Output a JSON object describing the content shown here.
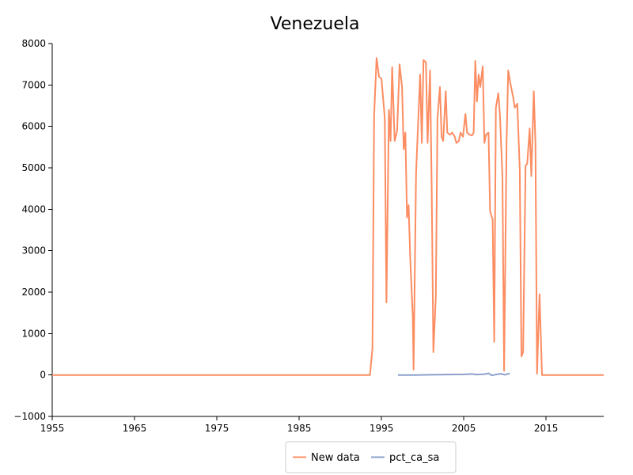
{
  "chart_data": {
    "type": "line",
    "title": "Venezuela",
    "xlabel": "",
    "ylabel": "",
    "xlim": [
      1955,
      2022
    ],
    "ylim": [
      -1000,
      8000
    ],
    "x_ticks": [
      "1955",
      "1965",
      "1975",
      "1985",
      "1995",
      "2005",
      "2015"
    ],
    "y_ticks": [
      "−1000",
      "0",
      "1000",
      "2000",
      "3000",
      "4000",
      "5000",
      "6000",
      "7000",
      "8000"
    ],
    "legend_placement": "bottom-center",
    "grid": false,
    "series": [
      {
        "name": "New data",
        "color": "#fc8d62",
        "points": [
          [
            1955,
            0
          ],
          [
            1993.6,
            0
          ],
          [
            1993.9,
            650
          ],
          [
            1994.1,
            6250
          ],
          [
            1994.4,
            7650
          ],
          [
            1994.7,
            7200
          ],
          [
            1995.0,
            7150
          ],
          [
            1995.4,
            6200
          ],
          [
            1995.6,
            1750
          ],
          [
            1995.9,
            6400
          ],
          [
            1996.1,
            5650
          ],
          [
            1996.3,
            7430
          ],
          [
            1996.6,
            5650
          ],
          [
            1996.9,
            5900
          ],
          [
            1997.2,
            7500
          ],
          [
            1997.5,
            6950
          ],
          [
            1997.7,
            5450
          ],
          [
            1997.9,
            5850
          ],
          [
            1998.1,
            3800
          ],
          [
            1998.3,
            4100
          ],
          [
            1998.5,
            2800
          ],
          [
            1998.8,
            1400
          ],
          [
            1998.9,
            130
          ],
          [
            1999.2,
            4850
          ],
          [
            1999.5,
            6300
          ],
          [
            1999.7,
            7250
          ],
          [
            1999.9,
            5600
          ],
          [
            2000.1,
            7600
          ],
          [
            2000.4,
            7550
          ],
          [
            2000.6,
            5600
          ],
          [
            2000.9,
            7350
          ],
          [
            2001.1,
            4500
          ],
          [
            2001.3,
            550
          ],
          [
            2001.6,
            1900
          ],
          [
            2001.8,
            6200
          ],
          [
            2002.1,
            6950
          ],
          [
            2002.3,
            5750
          ],
          [
            2002.5,
            5650
          ],
          [
            2002.8,
            6850
          ],
          [
            2003.0,
            5850
          ],
          [
            2003.3,
            5800
          ],
          [
            2003.6,
            5850
          ],
          [
            2003.9,
            5750
          ],
          [
            2004.1,
            5600
          ],
          [
            2004.4,
            5650
          ],
          [
            2004.6,
            5850
          ],
          [
            2004.9,
            5750
          ],
          [
            2005.2,
            6300
          ],
          [
            2005.4,
            5850
          ],
          [
            2005.7,
            5800
          ],
          [
            2006.0,
            5780
          ],
          [
            2006.2,
            5850
          ],
          [
            2006.4,
            7580
          ],
          [
            2006.6,
            6600
          ],
          [
            2006.8,
            7250
          ],
          [
            2007.0,
            6950
          ],
          [
            2007.3,
            7450
          ],
          [
            2007.5,
            5600
          ],
          [
            2007.7,
            5800
          ],
          [
            2008.0,
            5850
          ],
          [
            2008.2,
            3950
          ],
          [
            2008.5,
            3750
          ],
          [
            2008.7,
            800
          ],
          [
            2008.9,
            6450
          ],
          [
            2009.2,
            6800
          ],
          [
            2009.4,
            6250
          ],
          [
            2009.7,
            4800
          ],
          [
            2009.9,
            100
          ],
          [
            2010.2,
            5600
          ],
          [
            2010.4,
            7350
          ],
          [
            2010.7,
            7000
          ],
          [
            2011.0,
            6700
          ],
          [
            2011.2,
            6450
          ],
          [
            2011.5,
            6550
          ],
          [
            2011.8,
            4950
          ],
          [
            2012.0,
            450
          ],
          [
            2012.2,
            550
          ],
          [
            2012.5,
            5050
          ],
          [
            2012.7,
            5100
          ],
          [
            2013.0,
            5950
          ],
          [
            2013.2,
            4800
          ],
          [
            2013.5,
            6850
          ],
          [
            2013.7,
            5600
          ],
          [
            2013.9,
            30
          ],
          [
            2014.2,
            1950
          ],
          [
            2014.5,
            0
          ],
          [
            2022,
            0
          ]
        ]
      },
      {
        "name": "pct_ca_sa",
        "color": "#8da0cb",
        "points": [
          [
            1997.0,
            0
          ],
          [
            1999.0,
            0
          ],
          [
            2001.0,
            5
          ],
          [
            2003.0,
            10
          ],
          [
            2005.0,
            15
          ],
          [
            2006.0,
            25
          ],
          [
            2006.5,
            10
          ],
          [
            2007.5,
            20
          ],
          [
            2008.0,
            40
          ],
          [
            2008.4,
            -10
          ],
          [
            2009.0,
            15
          ],
          [
            2009.5,
            30
          ],
          [
            2010.0,
            5
          ],
          [
            2010.6,
            40
          ]
        ]
      }
    ]
  }
}
